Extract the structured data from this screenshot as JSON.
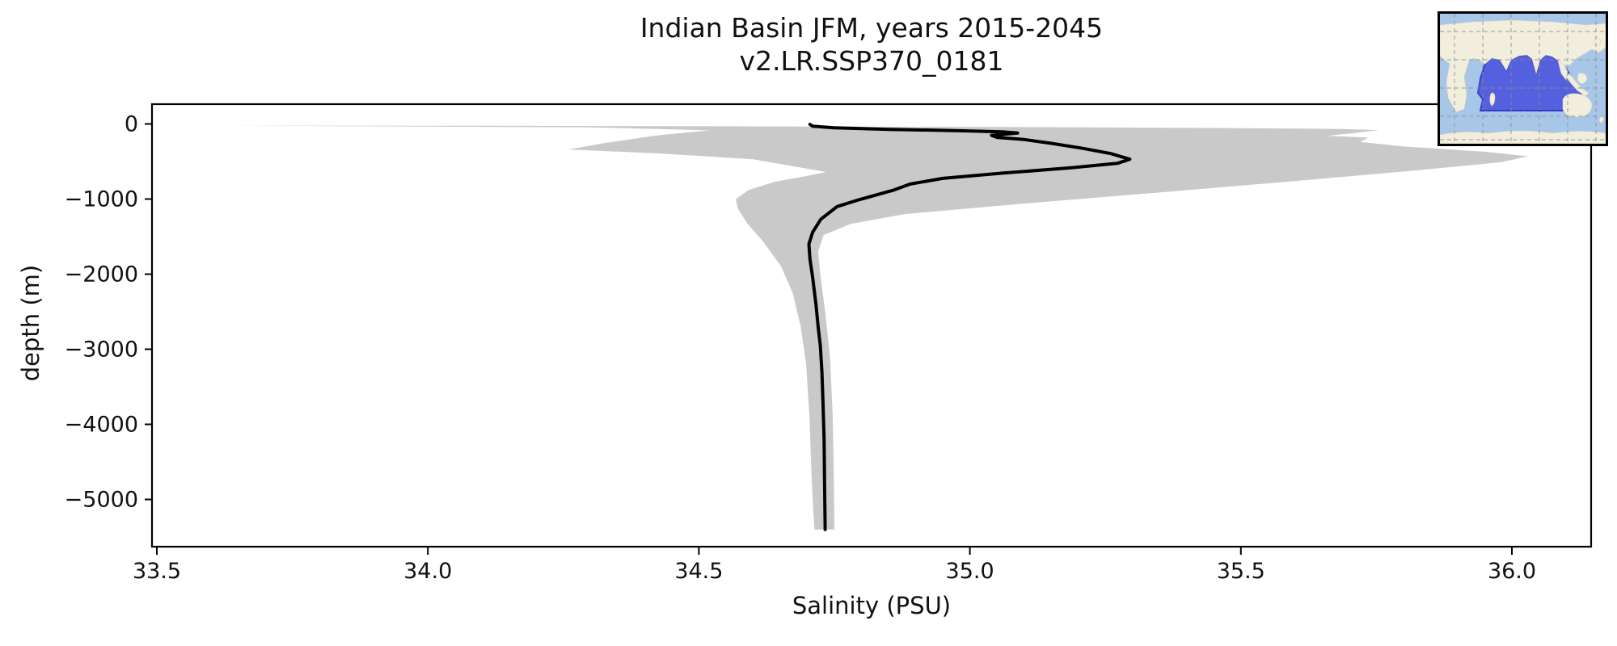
{
  "title": {
    "line1": "Indian Basin JFM, years 2015-2045",
    "line2": "v2.LR.SSP370_0181"
  },
  "axes": {
    "xlabel": "Salinity (PSU)",
    "ylabel": "depth (m)",
    "x_ticks": [
      {
        "v": 33.5,
        "label": "33.5"
      },
      {
        "v": 34.0,
        "label": "34.0"
      },
      {
        "v": 34.5,
        "label": "34.5"
      },
      {
        "v": 35.0,
        "label": "35.0"
      },
      {
        "v": 35.5,
        "label": "35.5"
      },
      {
        "v": 36.0,
        "label": "36.0"
      }
    ],
    "y_ticks": [
      {
        "v": 0,
        "label": "0"
      },
      {
        "v": -1000,
        "label": "−1000"
      },
      {
        "v": -2000,
        "label": "−2000"
      },
      {
        "v": -3000,
        "label": "−3000"
      },
      {
        "v": -4000,
        "label": "−4000"
      },
      {
        "v": -5000,
        "label": "−5000"
      }
    ]
  },
  "chart_data": {
    "type": "area",
    "title": "Indian Basin JFM, years 2015-2045",
    "subtitle": "v2.LR.SSP370_0181",
    "xlabel": "Salinity (PSU)",
    "ylabel": "depth (m)",
    "xlim": [
      33.49,
      36.15
    ],
    "ylim": [
      -5630,
      290
    ],
    "grid": false,
    "legend": "none",
    "series": [
      {
        "name": "ensemble spread envelope (min-max salinity vs depth)",
        "type": "area",
        "color": "#c9c9c9",
        "outline_sal_depth": [
          [
            33.625,
            -22
          ],
          [
            34.1,
            -25
          ],
          [
            34.6,
            -32
          ],
          [
            35.1,
            -42
          ],
          [
            35.45,
            -54
          ],
          [
            35.68,
            -66
          ],
          [
            35.755,
            -82
          ],
          [
            35.7,
            -128
          ],
          [
            35.66,
            -158
          ],
          [
            35.735,
            -182
          ],
          [
            35.72,
            -240
          ],
          [
            35.8,
            -300
          ],
          [
            35.95,
            -370
          ],
          [
            36.03,
            -430
          ],
          [
            35.98,
            -510
          ],
          [
            35.82,
            -620
          ],
          [
            35.6,
            -760
          ],
          [
            35.37,
            -900
          ],
          [
            35.1,
            -1060
          ],
          [
            34.88,
            -1200
          ],
          [
            34.78,
            -1330
          ],
          [
            34.73,
            -1480
          ],
          [
            34.72,
            -1700
          ],
          [
            34.724,
            -2000
          ],
          [
            34.733,
            -2500
          ],
          [
            34.742,
            -3100
          ],
          [
            34.747,
            -3900
          ],
          [
            34.749,
            -4700
          ],
          [
            34.75,
            -5400
          ],
          [
            34.713,
            -5400
          ],
          [
            34.708,
            -4700
          ],
          [
            34.704,
            -3900
          ],
          [
            34.698,
            -3200
          ],
          [
            34.688,
            -2700
          ],
          [
            34.673,
            -2250
          ],
          [
            34.652,
            -1900
          ],
          [
            34.62,
            -1580
          ],
          [
            34.59,
            -1330
          ],
          [
            34.572,
            -1130
          ],
          [
            34.568,
            -1000
          ],
          [
            34.592,
            -880
          ],
          [
            34.64,
            -770
          ],
          [
            34.7,
            -690
          ],
          [
            34.735,
            -640
          ],
          [
            34.6,
            -470
          ],
          [
            34.42,
            -390
          ],
          [
            34.26,
            -340
          ],
          [
            34.33,
            -250
          ],
          [
            34.42,
            -155
          ],
          [
            34.52,
            -85
          ],
          [
            34.3,
            -45
          ],
          [
            34.0,
            -34
          ],
          [
            33.8,
            -28
          ],
          [
            33.625,
            -22
          ]
        ]
      },
      {
        "name": "mean salinity profile",
        "type": "line",
        "color": "#000000",
        "linewidth": 4,
        "points_sal_depth": [
          [
            34.705,
            -5
          ],
          [
            34.71,
            -30
          ],
          [
            34.75,
            -52
          ],
          [
            34.85,
            -72
          ],
          [
            34.98,
            -90
          ],
          [
            35.06,
            -105
          ],
          [
            35.088,
            -122
          ],
          [
            35.04,
            -152
          ],
          [
            35.05,
            -178
          ],
          [
            35.1,
            -208
          ],
          [
            35.15,
            -258
          ],
          [
            35.205,
            -320
          ],
          [
            35.26,
            -395
          ],
          [
            35.295,
            -470
          ],
          [
            35.272,
            -525
          ],
          [
            35.185,
            -585
          ],
          [
            35.06,
            -655
          ],
          [
            34.95,
            -725
          ],
          [
            34.89,
            -800
          ],
          [
            34.86,
            -880
          ],
          [
            34.795,
            -1010
          ],
          [
            34.755,
            -1100
          ],
          [
            34.725,
            -1270
          ],
          [
            34.71,
            -1440
          ],
          [
            34.703,
            -1600
          ],
          [
            34.705,
            -1800
          ],
          [
            34.71,
            -2050
          ],
          [
            34.716,
            -2400
          ],
          [
            34.72,
            -2700
          ],
          [
            34.724,
            -2950
          ],
          [
            34.727,
            -3300
          ],
          [
            34.729,
            -3700
          ],
          [
            34.731,
            -4200
          ],
          [
            34.732,
            -4800
          ],
          [
            34.733,
            -5400
          ]
        ]
      }
    ]
  },
  "inset_map": {
    "description": "world locator map with Indian Ocean basin highlighted",
    "ocean_color": "#a7c6e8",
    "land_color": "#f1eedd",
    "region_color": "#4f58de",
    "region_outline_color": "#2f37c9",
    "grid_color": "#8d8d8d"
  }
}
